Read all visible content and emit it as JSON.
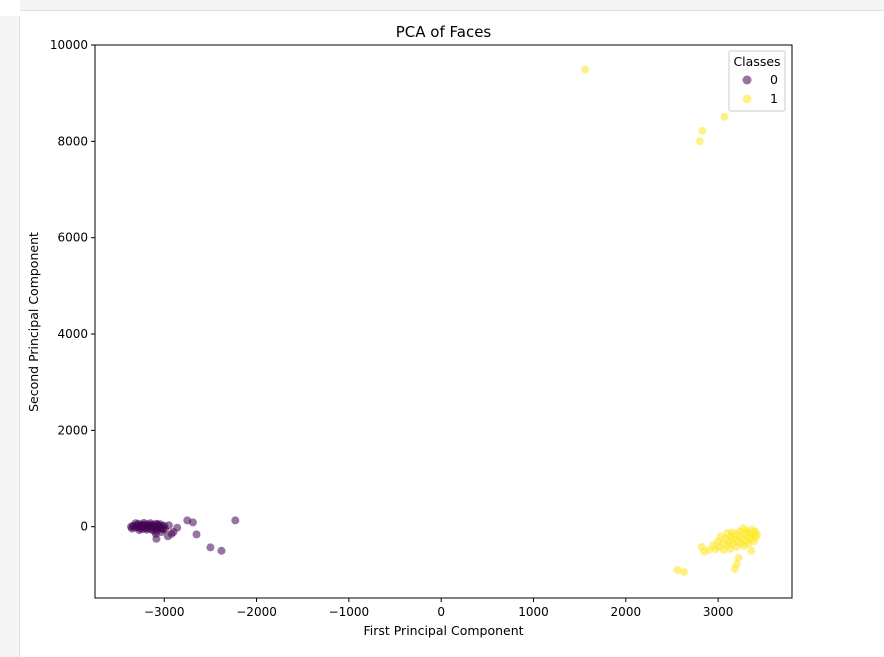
{
  "chart_data": {
    "type": "scatter",
    "title": "PCA of Faces",
    "xlabel": "First Principal Component",
    "ylabel": "Second Principal Component",
    "xlim": [
      -3750,
      3800
    ],
    "ylim": [
      -1480,
      10000
    ],
    "xticks": [
      -3000,
      -2000,
      -1000,
      0,
      1000,
      2000,
      3000
    ],
    "xtick_labels": [
      "−3000",
      "−2000",
      "−1000",
      "0",
      "1000",
      "2000",
      "3000"
    ],
    "yticks": [
      0,
      2000,
      4000,
      6000,
      8000,
      10000
    ],
    "ytick_labels": [
      "0",
      "2000",
      "4000",
      "6000",
      "8000",
      "10000"
    ],
    "grid": false,
    "legend": {
      "title": "Classes",
      "placement": "top-right"
    },
    "series": [
      {
        "name": "0",
        "color": "#440154",
        "points": [
          [
            -3360,
            0
          ],
          [
            -3340,
            20
          ],
          [
            -3320,
            -20
          ],
          [
            -3300,
            30
          ],
          [
            -3290,
            -10
          ],
          [
            -3280,
            60
          ],
          [
            -3270,
            10
          ],
          [
            -3260,
            -30
          ],
          [
            -3250,
            40
          ],
          [
            -3240,
            0
          ],
          [
            -3230,
            -50
          ],
          [
            -3220,
            80
          ],
          [
            -3210,
            20
          ],
          [
            -3200,
            -20
          ],
          [
            -3190,
            50
          ],
          [
            -3180,
            0
          ],
          [
            -3170,
            -40
          ],
          [
            -3160,
            30
          ],
          [
            -3150,
            10
          ],
          [
            -3140,
            -60
          ],
          [
            -3130,
            40
          ],
          [
            -3120,
            -10
          ],
          [
            -3110,
            20
          ],
          [
            -3100,
            -30
          ],
          [
            -3090,
            60
          ],
          [
            -3080,
            -80
          ],
          [
            -3070,
            0
          ],
          [
            -3060,
            30
          ],
          [
            -3050,
            -20
          ],
          [
            -3040,
            50
          ],
          [
            -3030,
            -40
          ],
          [
            -3020,
            10
          ],
          [
            -3010,
            -60
          ],
          [
            -3000,
            20
          ],
          [
            -3350,
            -40
          ],
          [
            -3310,
            70
          ],
          [
            -3270,
            -70
          ],
          [
            -3230,
            40
          ],
          [
            -3190,
            -60
          ],
          [
            -3150,
            70
          ],
          [
            -3110,
            -90
          ],
          [
            -3070,
            50
          ],
          [
            -3030,
            -110
          ],
          [
            -3090,
            -150
          ],
          [
            -3085,
            -250
          ],
          [
            -2990,
            -50
          ],
          [
            -2960,
            -200
          ],
          [
            -2950,
            30
          ],
          [
            -2920,
            -150
          ],
          [
            -2900,
            -110
          ],
          [
            -2860,
            -20
          ],
          [
            -2750,
            130
          ],
          [
            -2690,
            90
          ],
          [
            -2650,
            -160
          ],
          [
            -2500,
            -430
          ],
          [
            -2380,
            -500
          ],
          [
            -2230,
            130
          ]
        ]
      },
      {
        "name": "1",
        "color": "#fde725",
        "points": [
          [
            1560,
            9490
          ],
          [
            2800,
            8000
          ],
          [
            2830,
            8220
          ],
          [
            3070,
            8510
          ],
          [
            2560,
            -900
          ],
          [
            2630,
            -940
          ],
          [
            2820,
            -420
          ],
          [
            2850,
            -520
          ],
          [
            2900,
            -480
          ],
          [
            2950,
            -380
          ],
          [
            2970,
            -470
          ],
          [
            3000,
            -300
          ],
          [
            3010,
            -420
          ],
          [
            3030,
            -200
          ],
          [
            3050,
            -350
          ],
          [
            3060,
            -480
          ],
          [
            3080,
            -250
          ],
          [
            3100,
            -130
          ],
          [
            3110,
            -380
          ],
          [
            3120,
            -300
          ],
          [
            3130,
            -460
          ],
          [
            3140,
            -200
          ],
          [
            3150,
            -120
          ],
          [
            3160,
            -350
          ],
          [
            3170,
            -250
          ],
          [
            3180,
            -880
          ],
          [
            3190,
            -150
          ],
          [
            3200,
            -780
          ],
          [
            3200,
            -420
          ],
          [
            3210,
            -300
          ],
          [
            3220,
            -650
          ],
          [
            3230,
            -200
          ],
          [
            3240,
            -100
          ],
          [
            3250,
            -350
          ],
          [
            3260,
            -250
          ],
          [
            3270,
            -30
          ],
          [
            3280,
            -400
          ],
          [
            3290,
            -150
          ],
          [
            3300,
            -300
          ],
          [
            3310,
            -80
          ],
          [
            3320,
            -200
          ],
          [
            3330,
            -350
          ],
          [
            3340,
            -120
          ],
          [
            3350,
            -250
          ],
          [
            3360,
            -500
          ],
          [
            3370,
            -60
          ],
          [
            3380,
            -180
          ],
          [
            3390,
            -300
          ],
          [
            3400,
            -100
          ],
          [
            3410,
            -220
          ],
          [
            3420,
            -150
          ]
        ]
      }
    ]
  }
}
